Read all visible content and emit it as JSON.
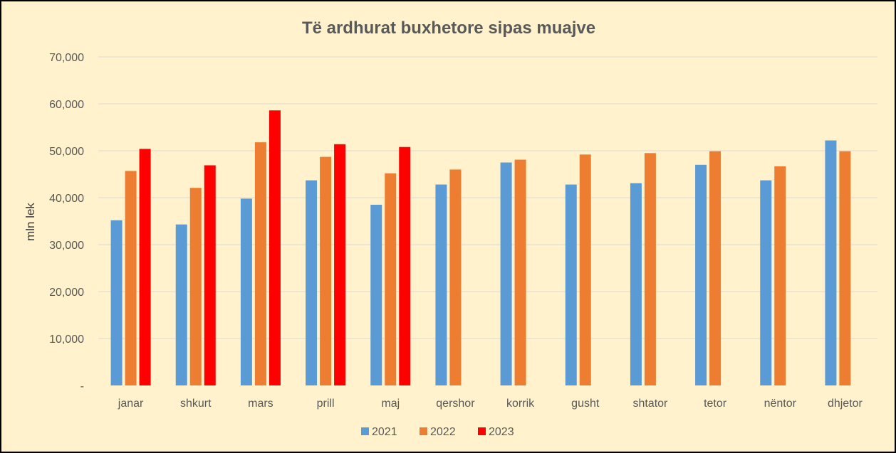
{
  "chart_data": {
    "type": "bar",
    "title": "Të ardhurat buxhetore sipas muajve",
    "xlabel": "",
    "ylabel": "mln lek",
    "ylim": [
      0,
      70000
    ],
    "yticks": [
      "-",
      "10,000",
      "20,000",
      "30,000",
      "40,000",
      "50,000",
      "60,000",
      "70,000"
    ],
    "grid": true,
    "legend_position": "bottom",
    "categories": [
      "janar",
      "shkurt",
      "mars",
      "prill",
      "maj",
      "qershor",
      "korrik",
      "gusht",
      "shtator",
      "tetor",
      "nëntor",
      "dhjetor"
    ],
    "series": [
      {
        "name": "2021",
        "color": "#5b9bd5",
        "values": [
          35200,
          34300,
          39800,
          43700,
          38500,
          42800,
          47500,
          42800,
          43100,
          47000,
          43700,
          52200
        ]
      },
      {
        "name": "2022",
        "color": "#ed7d31",
        "values": [
          45700,
          42100,
          51800,
          48700,
          45200,
          46000,
          48100,
          49200,
          49500,
          49900,
          46700,
          49900
        ]
      },
      {
        "name": "2023",
        "color": "#ff0000",
        "values": [
          50400,
          46900,
          58600,
          51400,
          50800,
          null,
          null,
          null,
          null,
          null,
          null,
          null
        ]
      }
    ]
  }
}
